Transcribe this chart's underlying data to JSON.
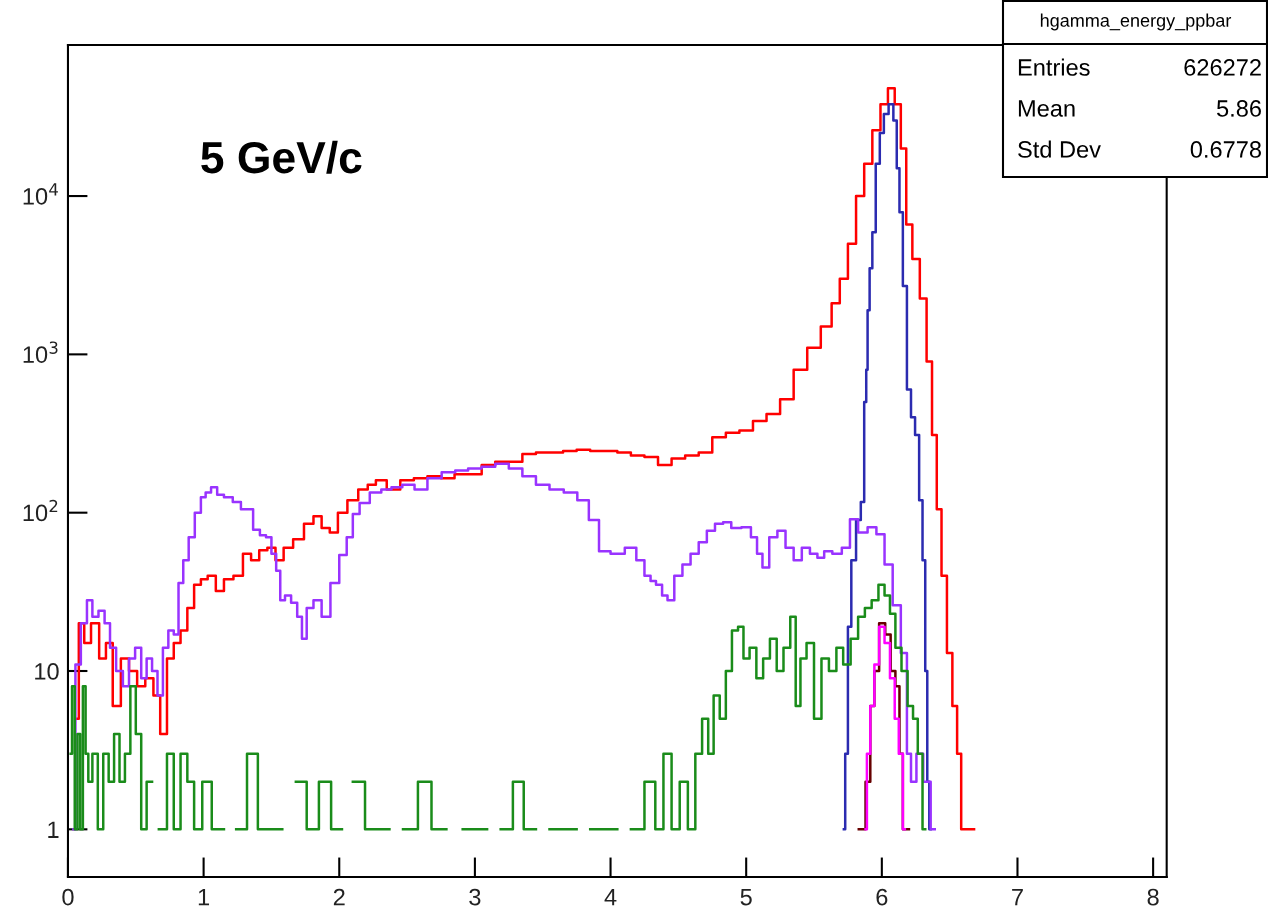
{
  "chart_data": {
    "type": "step",
    "annotations": [
      "5 GeV/c",
      "hgamma_energy_ppbar",
      "Entries",
      "626272",
      "Mean",
      "5.86",
      "Std Dev",
      "0.6778"
    ],
    "log": "y",
    "xlim": [
      0,
      8.1
    ],
    "ylim": [
      0.5,
      90000
    ],
    "xticks": [
      0,
      1,
      2,
      3,
      4,
      5,
      6,
      7,
      8
    ],
    "yticks": [
      1,
      10,
      {
        "value": 100,
        "label": "10$^{2}$"
      },
      {
        "value": 1000,
        "label": "10$^{3}$"
      },
      {
        "value": 10000,
        "label": "10$^{4}$"
      }
    ],
    "grid": false,
    "series": [
      {
        "color": "#ff0000",
        "x": [
          0.06,
          0.1,
          0.14,
          0.2,
          0.26,
          0.3,
          0.36,
          0.42,
          0.48,
          0.54,
          0.6,
          0.66,
          0.7,
          0.76,
          0.8,
          0.86,
          0.9,
          0.96,
          1.0,
          1.06,
          1.12,
          1.18,
          1.26,
          1.32,
          1.38,
          1.44,
          1.5,
          1.56,
          1.62,
          1.7,
          1.78,
          1.84,
          1.9,
          1.96,
          2.02,
          2.1,
          2.18,
          2.24,
          2.3,
          2.4,
          2.5,
          2.6,
          2.7,
          2.8,
          2.9,
          3.0,
          3.1,
          3.2,
          3.3,
          3.4,
          3.5,
          3.6,
          3.7,
          3.8,
          3.9,
          4.0,
          4.1,
          4.2,
          4.3,
          4.4,
          4.5,
          4.6,
          4.7,
          4.8,
          4.9,
          5.0,
          5.1,
          5.2,
          5.3,
          5.4,
          5.5,
          5.6,
          5.66,
          5.72,
          5.78,
          5.84,
          5.9,
          5.96,
          6.02,
          6.07,
          6.12,
          6.16,
          6.2,
          6.25,
          6.31,
          6.35,
          6.39,
          6.42,
          6.46,
          6.5,
          6.54,
          6.57,
          6.6,
          6.64,
          6.68
        ],
        "values": [
          5,
          20,
          15,
          20,
          12,
          15,
          6,
          12,
          10,
          8,
          9,
          7,
          4,
          12,
          15,
          18,
          25,
          35,
          38,
          40,
          32,
          38,
          40,
          55,
          50,
          58,
          60,
          50,
          60,
          68,
          85,
          95,
          80,
          75,
          100,
          120,
          140,
          150,
          160,
          140,
          160,
          165,
          170,
          165,
          175,
          175,
          200,
          210,
          210,
          235,
          240,
          240,
          245,
          250,
          245,
          245,
          240,
          230,
          225,
          200,
          220,
          230,
          240,
          300,
          320,
          330,
          380,
          420,
          520,
          800,
          1100,
          1500,
          2100,
          3000,
          5000,
          10000,
          16000,
          26000,
          38000,
          48000,
          38000,
          20000,
          6600,
          4000,
          2250,
          900,
          310,
          105,
          40,
          13,
          6,
          3,
          1,
          1,
          1
        ]
      },
      {
        "color": "#2b2bb0",
        "x": [
          5.72,
          5.74,
          5.76,
          5.79,
          5.83,
          5.86,
          5.88,
          5.89,
          5.9,
          5.92,
          5.94,
          5.97,
          6.0,
          6.03,
          6.07,
          6.1,
          6.12,
          6.14,
          6.17,
          6.2,
          6.23,
          6.26,
          6.29,
          6.31,
          6.33,
          6.34,
          6.36
        ],
        "values": [
          1,
          3,
          19,
          50,
          90,
          117,
          500,
          800,
          1900,
          3500,
          5900,
          16000,
          25000,
          33000,
          38000,
          30000,
          15000,
          7900,
          2700,
          600,
          400,
          310,
          120,
          50,
          10,
          2,
          1
        ]
      },
      {
        "color": "#9933ff",
        "x": [
          0.04,
          0.07,
          0.12,
          0.16,
          0.2,
          0.25,
          0.29,
          0.33,
          0.38,
          0.43,
          0.47,
          0.52,
          0.56,
          0.6,
          0.64,
          0.68,
          0.72,
          0.76,
          0.8,
          0.83,
          0.87,
          0.91,
          0.96,
          1.0,
          1.03,
          1.08,
          1.12,
          1.18,
          1.25,
          1.3,
          1.34,
          1.39,
          1.44,
          1.48,
          1.52,
          1.55,
          1.58,
          1.62,
          1.67,
          1.71,
          1.74,
          1.78,
          1.84,
          1.9,
          1.97,
          2.03,
          2.08,
          2.12,
          2.18,
          2.27,
          2.35,
          2.42,
          2.51,
          2.6,
          2.7,
          2.81,
          2.9,
          3.0,
          3.1,
          3.2,
          3.3,
          3.4,
          3.5,
          3.6,
          3.71,
          3.8,
          3.88,
          3.95,
          4.05,
          4.16,
          4.22,
          4.28,
          4.31,
          4.36,
          4.4,
          4.44,
          4.5,
          4.56,
          4.62,
          4.68,
          4.74,
          4.8,
          4.86,
          4.92,
          5.01,
          5.06,
          5.1,
          5.14,
          5.2,
          5.26,
          5.32,
          5.38,
          5.44,
          5.5,
          5.55,
          5.6,
          5.67,
          5.74,
          5.79,
          5.86,
          5.93,
          5.99,
          6.05,
          6.11,
          6.17,
          6.2,
          6.23,
          6.28,
          6.33,
          6.39
        ],
        "values": [
          1,
          11,
          20,
          28,
          22,
          24,
          20,
          14,
          10,
          8,
          12,
          14,
          9,
          12,
          10,
          7,
          14,
          18,
          17,
          36,
          50,
          70,
          100,
          125,
          134,
          145,
          130,
          125,
          117,
          105,
          105,
          78,
          72,
          70,
          55,
          43,
          28,
          30,
          27,
          22,
          16,
          25,
          28,
          22,
          36,
          54,
          70,
          98,
          115,
          134,
          140,
          145,
          150,
          140,
          165,
          180,
          185,
          190,
          195,
          204,
          190,
          170,
          150,
          140,
          134,
          120,
          90,
          57,
          55,
          60,
          50,
          40,
          37,
          35,
          30,
          28,
          40,
          47,
          55,
          65,
          77,
          85,
          87,
          80,
          81,
          70,
          55,
          45,
          70,
          77,
          60,
          50,
          60,
          55,
          52,
          57,
          55,
          60,
          91,
          75,
          81,
          73,
          47,
          26,
          13,
          3,
          2,
          3,
          2,
          1
        ]
      },
      {
        "color": "#1a8c1a",
        "x": [
          0.02,
          0.04,
          0.06,
          0.08,
          0.1,
          0.12,
          0.14,
          0.16,
          0.2,
          0.24,
          0.28,
          0.32,
          0.36,
          0.4,
          0.44,
          0.48,
          0.52,
          0.56,
          0.6,
          0.64,
          0.7,
          0.76,
          0.8,
          0.86,
          0.9,
          0.96,
          1.02,
          1.1,
          1.2,
          1.28,
          1.36,
          1.44,
          1.52,
          1.64,
          1.72,
          1.8,
          1.9,
          1.98,
          2.06,
          2.14,
          2.24,
          2.32,
          2.42,
          2.52,
          2.64,
          2.72,
          2.86,
          2.96,
          3.04,
          3.14,
          3.24,
          3.32,
          3.4,
          3.5,
          3.6,
          3.7,
          3.8,
          3.9,
          4.0,
          4.1,
          4.2,
          4.3,
          4.36,
          4.42,
          4.48,
          4.54,
          4.6,
          4.65,
          4.7,
          4.74,
          4.78,
          4.83,
          4.87,
          4.92,
          4.96,
          5.0,
          5.05,
          5.1,
          5.15,
          5.2,
          5.25,
          5.3,
          5.35,
          5.38,
          5.42,
          5.47,
          5.53,
          5.58,
          5.64,
          5.69,
          5.74,
          5.8,
          5.85,
          5.9,
          5.95,
          6.0,
          6.04,
          6.08,
          6.12,
          6.17,
          6.21,
          6.25,
          6.28,
          6.32
        ],
        "values": [
          3,
          8,
          1,
          4,
          1,
          8,
          3,
          2,
          3,
          1,
          3,
          2,
          4,
          2,
          3,
          8,
          4,
          1,
          2,
          null,
          1,
          3,
          1,
          3,
          2,
          1,
          2,
          1,
          null,
          1,
          3,
          1,
          1,
          null,
          2,
          1,
          2,
          1,
          null,
          2,
          1,
          1,
          null,
          1,
          2,
          1,
          null,
          1,
          1,
          null,
          1,
          2,
          1,
          null,
          1,
          1,
          null,
          1,
          1,
          null,
          1,
          2,
          1,
          3,
          1,
          2,
          1,
          3,
          5,
          3,
          7,
          5,
          10,
          18,
          19,
          12,
          14,
          9,
          12,
          16,
          10,
          14,
          22,
          6,
          12,
          15,
          5,
          12,
          10,
          14,
          11,
          16,
          22,
          25,
          28,
          35,
          30,
          23,
          14,
          10,
          6,
          5,
          3,
          1
        ]
      },
      {
        "color": "#660000",
        "x": [
          5.83,
          5.86,
          5.9,
          5.93,
          5.96,
          6.0,
          6.05,
          6.08,
          6.12,
          6.14,
          6.17,
          6.2
        ],
        "values": [
          1,
          1,
          2,
          6,
          10,
          20,
          17,
          10,
          8,
          3,
          1,
          1
        ]
      },
      {
        "color": "#ff00ff",
        "x": [
          5.88,
          5.9,
          5.93,
          5.96,
          6.0,
          6.04,
          6.08,
          6.11,
          6.14,
          6.17
        ],
        "values": [
          1,
          3,
          6,
          11,
          19,
          15,
          9,
          5,
          3,
          1
        ]
      }
    ]
  }
}
